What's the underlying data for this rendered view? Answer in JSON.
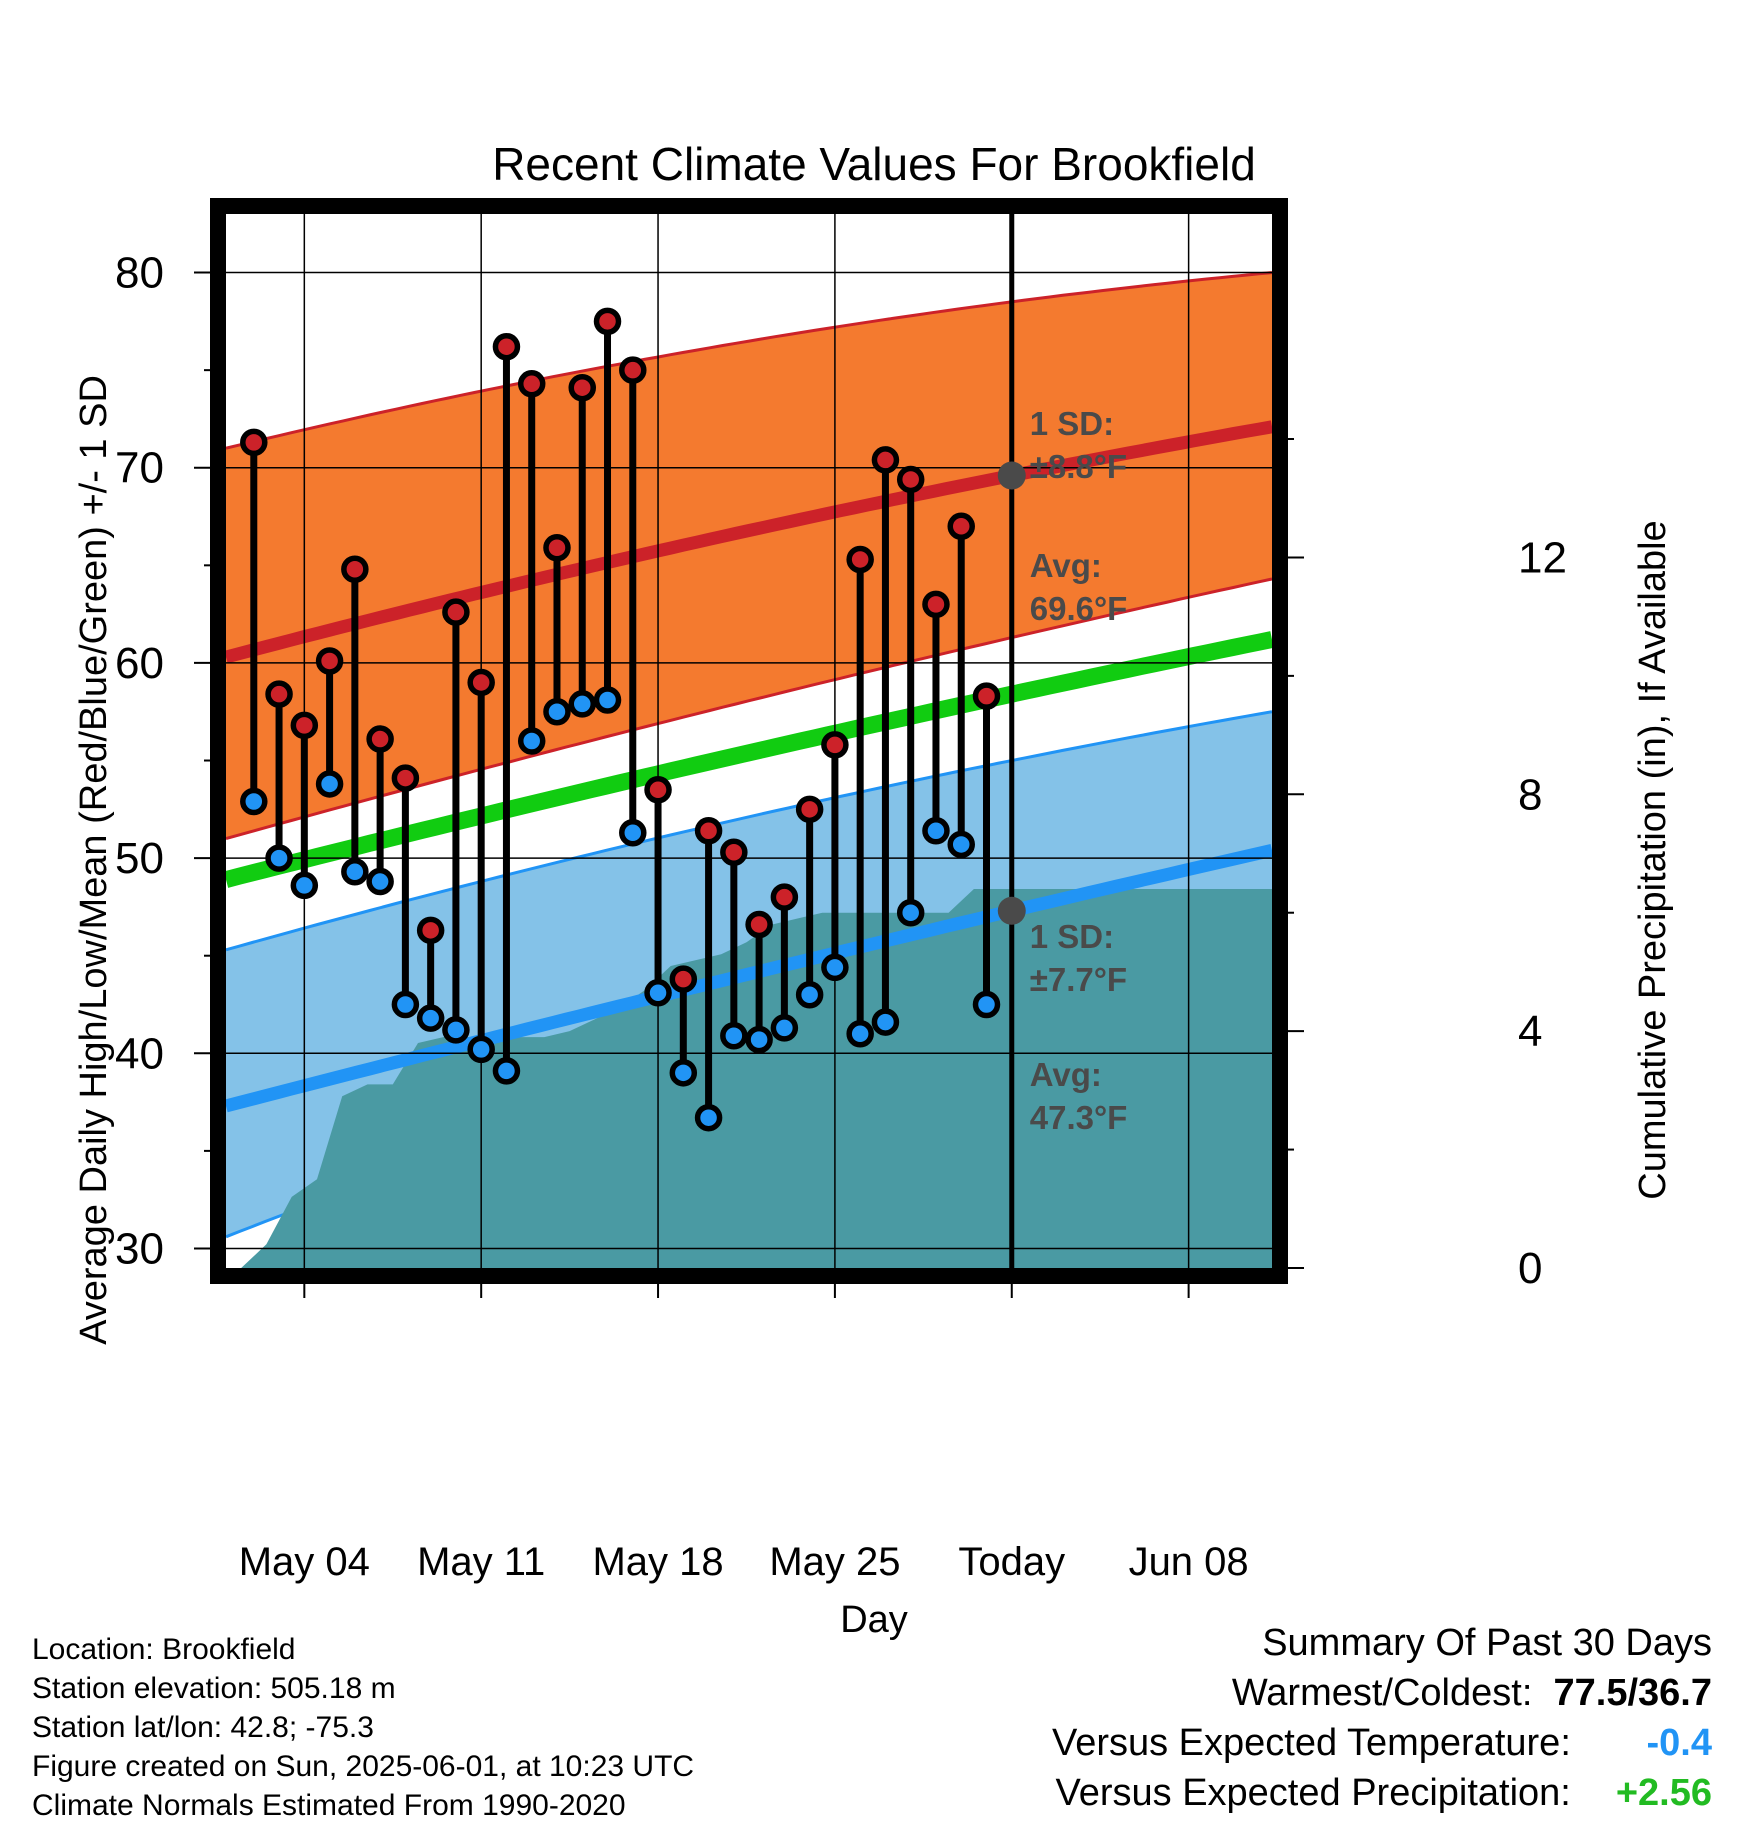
{
  "chart_data": {
    "type": "line",
    "title": "Recent Climate Values For Brookfield",
    "xlabel": "Day",
    "ylabel": "Average Daily High/Low/Mean (Red/Blue/Green) +/- 1 SD",
    "y2label": "Cumulative Precipitation (in), If Available",
    "ylim": [
      29,
      83
    ],
    "y2lim": [
      0,
      17.8
    ],
    "yticks": [
      30,
      40,
      50,
      60,
      70,
      80
    ],
    "y2ticks": [
      0,
      4,
      8,
      12
    ],
    "xrange_days": [
      -31.1,
      10.3
    ],
    "xticks": [
      {
        "day": -28,
        "label": "May 04"
      },
      {
        "day": -21,
        "label": "May 11"
      },
      {
        "day": -14,
        "label": "May 18"
      },
      {
        "day": -7,
        "label": "May 25"
      },
      {
        "day": 0,
        "label": "Today"
      },
      {
        "day": 7,
        "label": "Jun 08"
      }
    ],
    "grid": true,
    "normals": {
      "high_avg": {
        "start": 60.3,
        "today": 69.6,
        "end": 72.1
      },
      "high_plus": {
        "start": 71.0,
        "today": 78.5,
        "end": 80.0
      },
      "high_minus": {
        "start": 51.0,
        "today": 61.3,
        "end": 64.3
      },
      "mean": {
        "start": 48.9,
        "today": 58.4,
        "end": 61.2
      },
      "low_avg": {
        "start": 37.3,
        "today": 47.3,
        "end": 50.4
      },
      "low_plus": {
        "start": 45.3,
        "today": 55.0,
        "end": 57.5
      },
      "low_minus": {
        "start": 30.6,
        "today": 42.0,
        "end": 43.8
      }
    },
    "annotations": {
      "high_sd_label": "1 SD:",
      "high_sd_value": "±8.8°F",
      "high_avg_label": "Avg:",
      "high_avg_value": "69.6°F",
      "low_sd_label": "1 SD:",
      "low_sd_value": "±7.7°F",
      "low_avg_label": "Avg:",
      "low_avg_value": "47.3°F",
      "days_line1": "30",
      "days_line2": "Days"
    },
    "daily": [
      {
        "day": -30,
        "high": 71.3,
        "low": 52.9
      },
      {
        "day": -29,
        "high": 58.4,
        "low": 50.0
      },
      {
        "day": -28,
        "high": 56.8,
        "low": 48.6
      },
      {
        "day": -27,
        "high": 60.1,
        "low": 53.8
      },
      {
        "day": -26,
        "high": 64.8,
        "low": 49.3
      },
      {
        "day": -25,
        "high": 56.1,
        "low": 48.8
      },
      {
        "day": -24,
        "high": 54.1,
        "low": 42.5
      },
      {
        "day": -23,
        "high": 46.3,
        "low": 41.8
      },
      {
        "day": -22,
        "high": 62.6,
        "low": 41.2
      },
      {
        "day": -21,
        "high": 59.0,
        "low": 40.2
      },
      {
        "day": -20,
        "high": 76.2,
        "low": 39.1
      },
      {
        "day": -19,
        "high": 74.3,
        "low": 56.0
      },
      {
        "day": -18,
        "high": 65.9,
        "low": 57.5
      },
      {
        "day": -17,
        "high": 74.1,
        "low": 57.9
      },
      {
        "day": -16,
        "high": 77.5,
        "low": 58.1
      },
      {
        "day": -15,
        "high": 75.0,
        "low": 51.3
      },
      {
        "day": -14,
        "high": 53.5,
        "low": 43.1
      },
      {
        "day": -13,
        "high": 43.8,
        "low": 39.0
      },
      {
        "day": -12,
        "high": 51.4,
        "low": 36.7
      },
      {
        "day": -11,
        "high": 50.3,
        "low": 40.9
      },
      {
        "day": -10,
        "high": 46.6,
        "low": 40.7
      },
      {
        "day": -9,
        "high": 48.0,
        "low": 41.3
      },
      {
        "day": -8,
        "high": 52.5,
        "low": 43.0
      },
      {
        "day": -7,
        "high": 55.8,
        "low": 44.4
      },
      {
        "day": -6,
        "high": 65.3,
        "low": 41.0
      },
      {
        "day": -5,
        "high": 70.4,
        "low": 41.6
      },
      {
        "day": -4,
        "high": 69.4,
        "low": 47.2
      },
      {
        "day": -3,
        "high": 63.0,
        "low": 51.4
      },
      {
        "day": -2,
        "high": 67.0,
        "low": 50.7
      },
      {
        "day": -1,
        "high": 58.3,
        "low": 42.5
      }
    ],
    "precip_cumulative": [
      {
        "day": -30.5,
        "value": 0.0
      },
      {
        "day": -29.5,
        "value": 0.4
      },
      {
        "day": -28.5,
        "value": 1.2
      },
      {
        "day": -27.5,
        "value": 1.5
      },
      {
        "day": -26.5,
        "value": 2.9
      },
      {
        "day": -25.5,
        "value": 3.1
      },
      {
        "day": -24.5,
        "value": 3.1
      },
      {
        "day": -23.5,
        "value": 3.8
      },
      {
        "day": -22.5,
        "value": 3.9
      },
      {
        "day": -21.5,
        "value": 3.9
      },
      {
        "day": -20.5,
        "value": 3.9
      },
      {
        "day": -19.5,
        "value": 3.9
      },
      {
        "day": -18.5,
        "value": 3.9
      },
      {
        "day": -17.5,
        "value": 4.0
      },
      {
        "day": -16.5,
        "value": 4.2
      },
      {
        "day": -15.5,
        "value": 4.4
      },
      {
        "day": -14.5,
        "value": 4.7
      },
      {
        "day": -13.5,
        "value": 5.1
      },
      {
        "day": -12.5,
        "value": 5.2
      },
      {
        "day": -11.5,
        "value": 5.3
      },
      {
        "day": -10.5,
        "value": 5.5
      },
      {
        "day": -9.5,
        "value": 5.8
      },
      {
        "day": -8.5,
        "value": 5.9
      },
      {
        "day": -7.5,
        "value": 6.0
      },
      {
        "day": -6.5,
        "value": 6.0
      },
      {
        "day": -5.5,
        "value": 6.0
      },
      {
        "day": -4.5,
        "value": 6.0
      },
      {
        "day": -3.5,
        "value": 6.0
      },
      {
        "day": -2.5,
        "value": 6.0
      },
      {
        "day": -1.5,
        "value": 6.4
      },
      {
        "day": -0.5,
        "value": 6.4
      },
      {
        "day": 10.3,
        "value": 6.4
      }
    ],
    "colors": {
      "high_band": "#f47a2f",
      "high_line": "#cc2229",
      "mean_line": "#11cc11",
      "low_band": "#84c2e8",
      "low_line": "#2194f5",
      "precip": "#4a9aa3",
      "high_dot": "#cc2229",
      "low_dot": "#2194f5",
      "annotation": "#4a4a4a"
    }
  },
  "footer": {
    "location": "Location: Brookfield",
    "elevation": "Station elevation: 505.18 m",
    "latlon": "Station lat/lon: 42.8; -75.3",
    "created": "Figure created on Sun, 2025-06-01, at 10:23 UTC",
    "normals": "Climate Normals Estimated From 1990-2020"
  },
  "summary": {
    "title": "Summary Of Past 30 Days",
    "warmest_label": "Warmest/Coldest:",
    "warmest_value": "77.5/36.7",
    "temp_label": "Versus Expected Temperature:",
    "temp_value": "-0.4",
    "temp_color": "#2194f5",
    "precip_label": "Versus Expected Precipitation:",
    "precip_value": "+2.56",
    "precip_color": "#22bb22"
  }
}
